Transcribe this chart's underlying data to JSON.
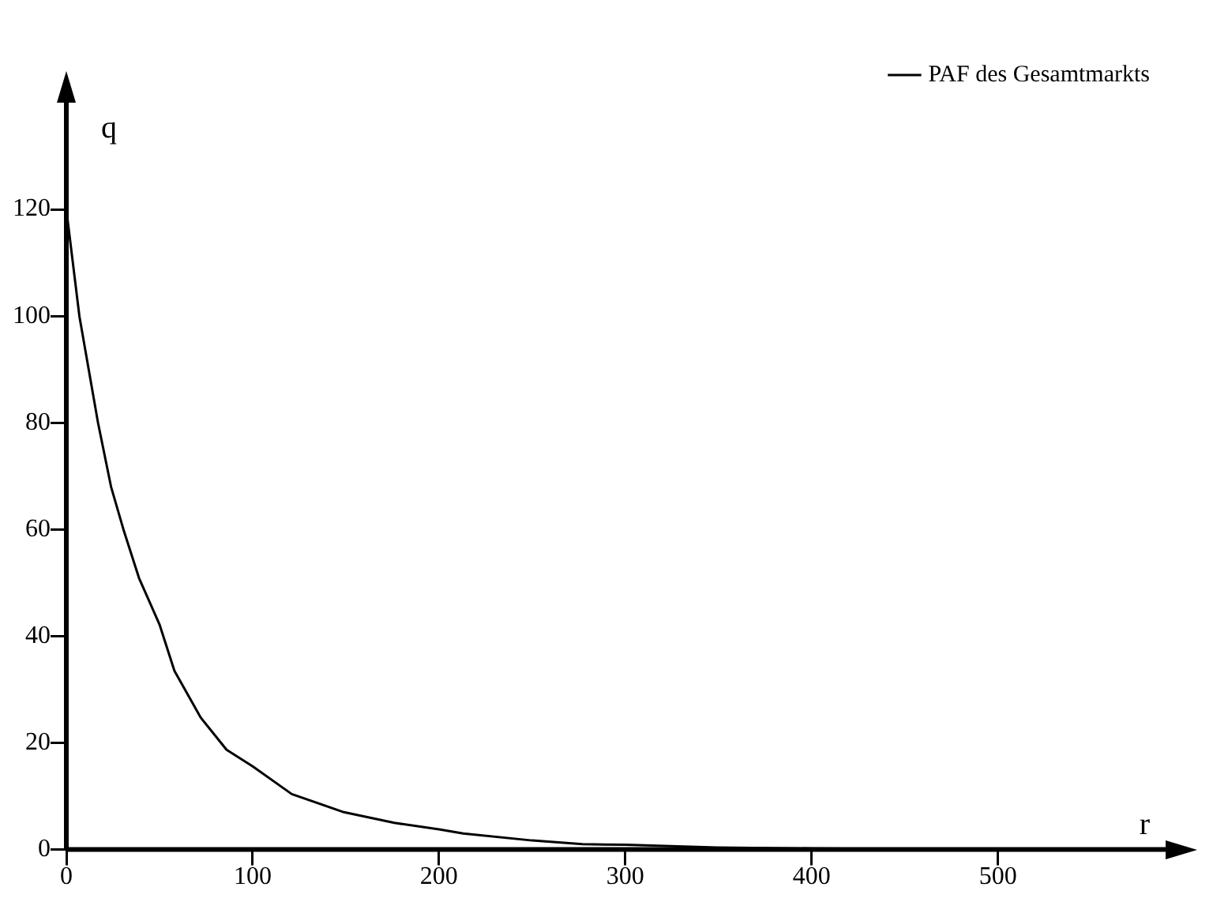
{
  "chart_data": {
    "type": "line",
    "xlabel": "r",
    "ylabel": "q",
    "x": [
      0,
      7,
      17,
      24,
      31,
      39,
      50,
      58,
      72,
      86,
      100,
      121,
      149,
      176,
      200,
      213,
      250,
      277,
      300,
      349,
      400,
      453
    ],
    "series": [
      {
        "name": "PAF des Gesamtmarkts",
        "color": "#000000",
        "values": [
          120,
          100,
          80,
          68,
          59.6,
          50.9,
          42.2,
          33.5,
          24.8,
          18.7,
          15.6,
          10.4,
          7,
          5,
          3.8,
          3,
          1.7,
          1,
          0.9,
          0.4,
          0.2,
          0.1
        ]
      }
    ],
    "xlim": [
      0,
      590
    ],
    "ylim": [
      0,
      140
    ],
    "xticks": [
      0,
      100,
      200,
      300,
      400,
      500
    ],
    "yticks": [
      0,
      20,
      40,
      60,
      80,
      100,
      120
    ],
    "grid": false,
    "legend": "top right",
    "marker": "none",
    "line_style": "solid"
  }
}
